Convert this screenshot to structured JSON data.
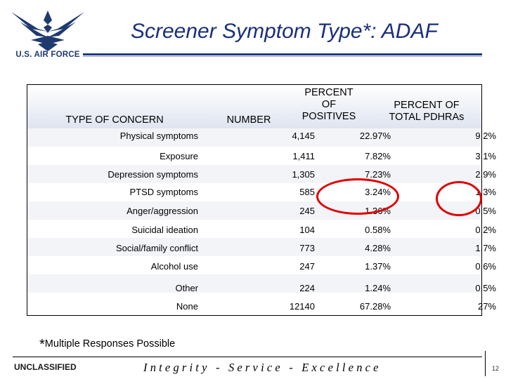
{
  "header": {
    "logo_text": "U.S. AIR FORCE",
    "title": "Screener Symptom Type*: ADAF"
  },
  "table": {
    "columns": [
      "TYPE OF CONCERN",
      "NUMBER",
      "PERCENT OF POSITIVES",
      "PERCENT OF TOTAL PDHRAs"
    ],
    "column_lines": {
      "positives": [
        "PERCENT",
        "OF",
        "POSITIVES"
      ],
      "total": [
        "PERCENT OF",
        "TOTAL PDHRAs"
      ]
    },
    "rows": [
      {
        "label": "Physical symptoms",
        "number": "4,145",
        "positives": "22.97%",
        "total": "9.2%"
      },
      {
        "label": "Exposure",
        "number": "1,411",
        "positives": "7.82%",
        "total": "3.1%"
      },
      {
        "label": "Depression symptoms",
        "number": "1,305",
        "positives": "7.23%",
        "total": "2.9%"
      },
      {
        "label": "PTSD symptoms",
        "number": "585",
        "positives": "3.24%",
        "total": "1.3%"
      },
      {
        "label": "Anger/aggression",
        "number": "245",
        "positives": "1.36%",
        "total": "0.5%"
      },
      {
        "label": "Suicidal ideation",
        "number": "104",
        "positives": "0.58%",
        "total": "0.2%"
      },
      {
        "label": "Social/family conflict",
        "number": "773",
        "positives": "4.28%",
        "total": "1.7%"
      },
      {
        "label": "Alcohol use",
        "number": "247",
        "positives": "1.37%",
        "total": "0.6%"
      },
      {
        "label": "Other",
        "number": "224",
        "positives": "1.24%",
        "total": "0.5%"
      },
      {
        "label": "None",
        "number": "12140",
        "positives": "67.28%",
        "total": "27%"
      }
    ]
  },
  "footnote": {
    "star": "*",
    "text": "Multiple Responses Possible"
  },
  "footer": {
    "classification": "UNCLASSIFIED",
    "motto": "Integrity - Service - Excellence",
    "page_number": "12"
  },
  "colors": {
    "title": "#1a2f7a",
    "rule": "#1f3a8a",
    "highlight_circle": "#e10000"
  }
}
